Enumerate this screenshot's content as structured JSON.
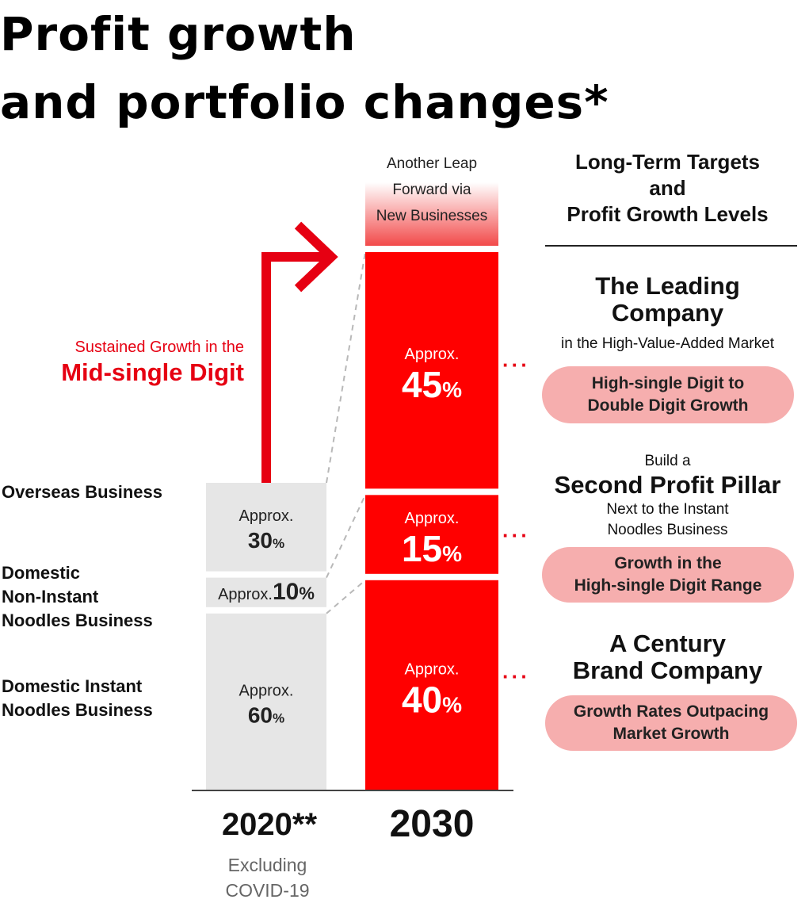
{
  "title": {
    "line1": "Profit growth",
    "line2": "and portfolio changes*"
  },
  "chart_data": {
    "type": "bar",
    "stacked": true,
    "categories": [
      "2020**",
      "2030"
    ],
    "category_note": [
      "Excluding",
      "COVID-19"
    ],
    "series": [
      {
        "name": "Domestic Instant Noodles Business",
        "label_lines": [
          "Domestic Instant",
          "Noodles Business"
        ],
        "values": [
          60,
          40
        ],
        "value_labels": [
          "60%",
          "40%"
        ]
      },
      {
        "name": "Domestic Non-Instant Noodles Business",
        "label_lines": [
          "Domestic",
          "Non-Instant",
          "Noodles Business"
        ],
        "values": [
          10,
          15
        ],
        "value_labels": [
          "10%",
          "15%"
        ]
      },
      {
        "name": "Overseas Business",
        "label_lines": [
          "Overseas Business"
        ],
        "values": [
          30,
          45
        ],
        "value_labels": [
          "30%",
          "45%"
        ]
      }
    ],
    "value_prefix": "Approx.",
    "colors": {
      "2020": "#e6e6e6",
      "2030": "#ff0000",
      "arrow": "#e60012",
      "pill": "#f6aeae"
    },
    "growth_arrow": {
      "sub": "Sustained Growth in the",
      "main": "Mid-single Digit"
    },
    "new_business": [
      "Another Leap",
      "Forward via",
      "New Businesses"
    ]
  },
  "targets": {
    "header": [
      "Long-Term Targets",
      "and",
      "Profit Growth Levels"
    ],
    "overseas": {
      "heading": [
        "The Leading",
        "Company"
      ],
      "sub": [
        "in the High-Value-Added Market"
      ],
      "pill": [
        "High-single Digit to",
        "Double Digit Growth"
      ]
    },
    "non_instant": {
      "pre": "Build a",
      "heading": [
        "Second Profit Pillar"
      ],
      "sub": [
        "Next to the Instant",
        "Noodles Business"
      ],
      "pill": [
        "Growth in the",
        "High-single Digit Range"
      ]
    },
    "instant": {
      "heading": [
        "A Century",
        "Brand Company"
      ],
      "pill": [
        "Growth Rates Outpacing",
        "Market Growth"
      ]
    },
    "dots": "···"
  }
}
